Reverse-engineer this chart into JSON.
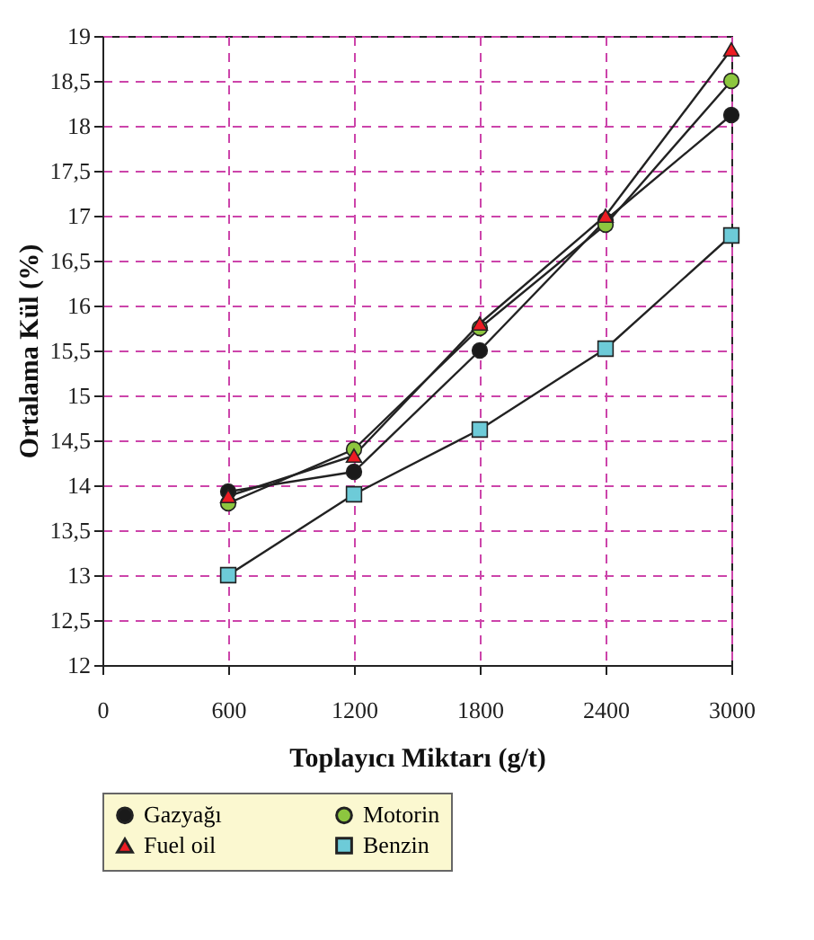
{
  "chart_data": {
    "type": "line",
    "xlabel": "Toplayıcı Miktarı (g/t)",
    "ylabel": "Ortalama Kül (%)",
    "x": [
      600,
      1200,
      1800,
      2400,
      3000
    ],
    "series": [
      {
        "name": "Gazyağı",
        "color": "#1a1a1a",
        "marker": "circle",
        "values": [
          13.93,
          14.15,
          15.5,
          16.95,
          18.12
        ]
      },
      {
        "name": "Motorin",
        "color": "#8dc63f",
        "marker": "circle",
        "values": [
          13.8,
          14.4,
          15.75,
          16.9,
          18.5
        ]
      },
      {
        "name": "Fuel oil",
        "color": "#ed1c24",
        "marker": "triangle",
        "values": [
          13.88,
          14.33,
          15.8,
          17.0,
          18.85
        ]
      },
      {
        "name": "Benzin",
        "color": "#6dcbd8",
        "marker": "square",
        "values": [
          13.0,
          13.9,
          14.62,
          15.52,
          16.78
        ]
      }
    ],
    "xlim": [
      0,
      3000
    ],
    "xticks": [
      0,
      600,
      1200,
      1800,
      2400,
      3000
    ],
    "ylim": [
      12,
      19
    ],
    "yticks": [
      12,
      {
        "value": 12.5,
        "label": "12,5"
      },
      13,
      {
        "value": 13.5,
        "label": "13,5"
      },
      14,
      {
        "value": 14.5,
        "label": "14,5"
      },
      15,
      {
        "value": 15.5,
        "label": "15,5"
      },
      16,
      {
        "value": 16.5,
        "label": "16,5"
      },
      17,
      {
        "value": 17.5,
        "label": "17,5"
      },
      18,
      {
        "value": 18.5,
        "label": "18,5"
      },
      19
    ],
    "grid": true,
    "legend": "bottom",
    "line_style": "solid"
  }
}
